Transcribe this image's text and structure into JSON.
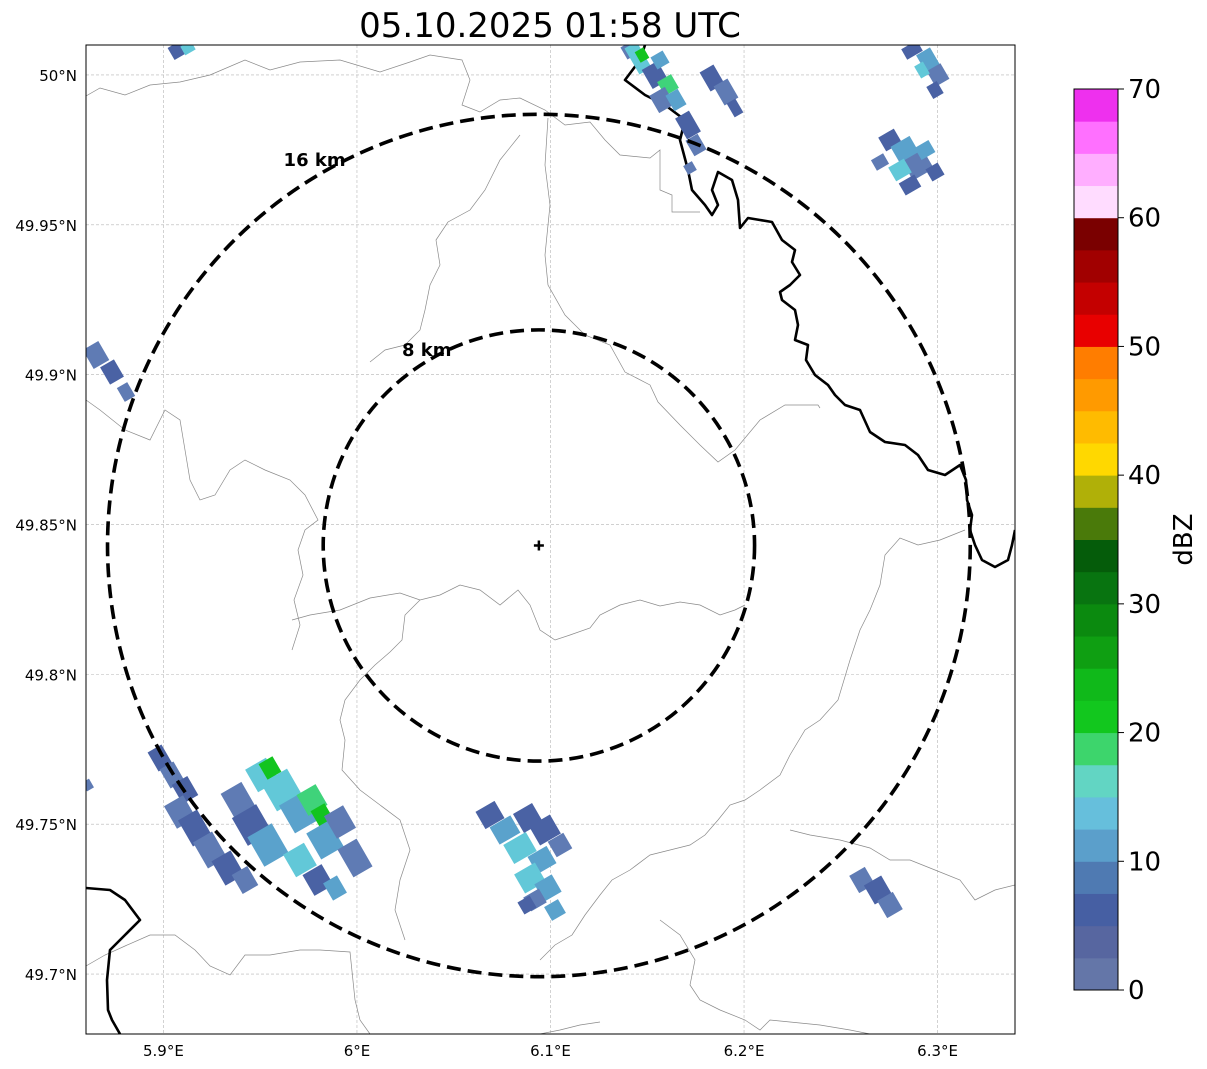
{
  "title": "05.10.2025 01:58 UTC",
  "map": {
    "lon_range": [
      5.86,
      6.34
    ],
    "lat_range": [
      49.68,
      50.01
    ],
    "center": {
      "lon": 6.094,
      "lat": 49.843
    },
    "lat_ticks": [
      {
        "value": 50.0,
        "label": "50°N"
      },
      {
        "value": 49.95,
        "label": "49.95°N"
      },
      {
        "value": 49.9,
        "label": "49.9°N"
      },
      {
        "value": 49.85,
        "label": "49.85°N"
      },
      {
        "value": 49.8,
        "label": "49.8°N"
      },
      {
        "value": 49.75,
        "label": "49.75°N"
      },
      {
        "value": 49.7,
        "label": "49.7°N"
      }
    ],
    "lon_ticks": [
      {
        "value": 5.9,
        "label": "5.9°E"
      },
      {
        "value": 6.0,
        "label": "6°E"
      },
      {
        "value": 6.1,
        "label": "6.1°E"
      },
      {
        "value": 6.2,
        "label": "6.2°E"
      },
      {
        "value": 6.3,
        "label": "6.3°E"
      }
    ],
    "range_rings": [
      {
        "radius_km": 8,
        "label": "8 km"
      },
      {
        "radius_km": 16,
        "label": "16 km"
      }
    ],
    "grid": true
  },
  "colorbar": {
    "label": "dBZ",
    "min": 0,
    "max": 70,
    "ticks": [
      {
        "value": 0,
        "label": "0"
      },
      {
        "value": 10,
        "label": "10"
      },
      {
        "value": 20,
        "label": "20"
      },
      {
        "value": 30,
        "label": "30"
      },
      {
        "value": 40,
        "label": "40"
      },
      {
        "value": 50,
        "label": "50"
      },
      {
        "value": 60,
        "label": "60"
      },
      {
        "value": 70,
        "label": "70"
      }
    ],
    "colors": [
      "#6476a8",
      "#5766a0",
      "#465fa3",
      "#4f7ab2",
      "#5b9fcb",
      "#66bfdc",
      "#62d5c3",
      "#3dd56c",
      "#12c71e",
      "#10b91a",
      "#0f9f12",
      "#0b8a0f",
      "#087410",
      "#055c0a",
      "#4a7a0a",
      "#b0b008",
      "#ffd800",
      "#ffbb00",
      "#ff9a00",
      "#ff7d00",
      "#e80000",
      "#c40000",
      "#a10000",
      "#7a0000",
      "#ffdcff",
      "#ffaeff",
      "#ff70ff",
      "#ee30ee"
    ]
  },
  "echo_colors": {
    "c1": "#4a62a4",
    "c2": "#5f7bb4",
    "c3": "#5aa2cc",
    "c4": "#62c8d8",
    "c5": "#3fd37a",
    "c6": "#12c41f"
  }
}
